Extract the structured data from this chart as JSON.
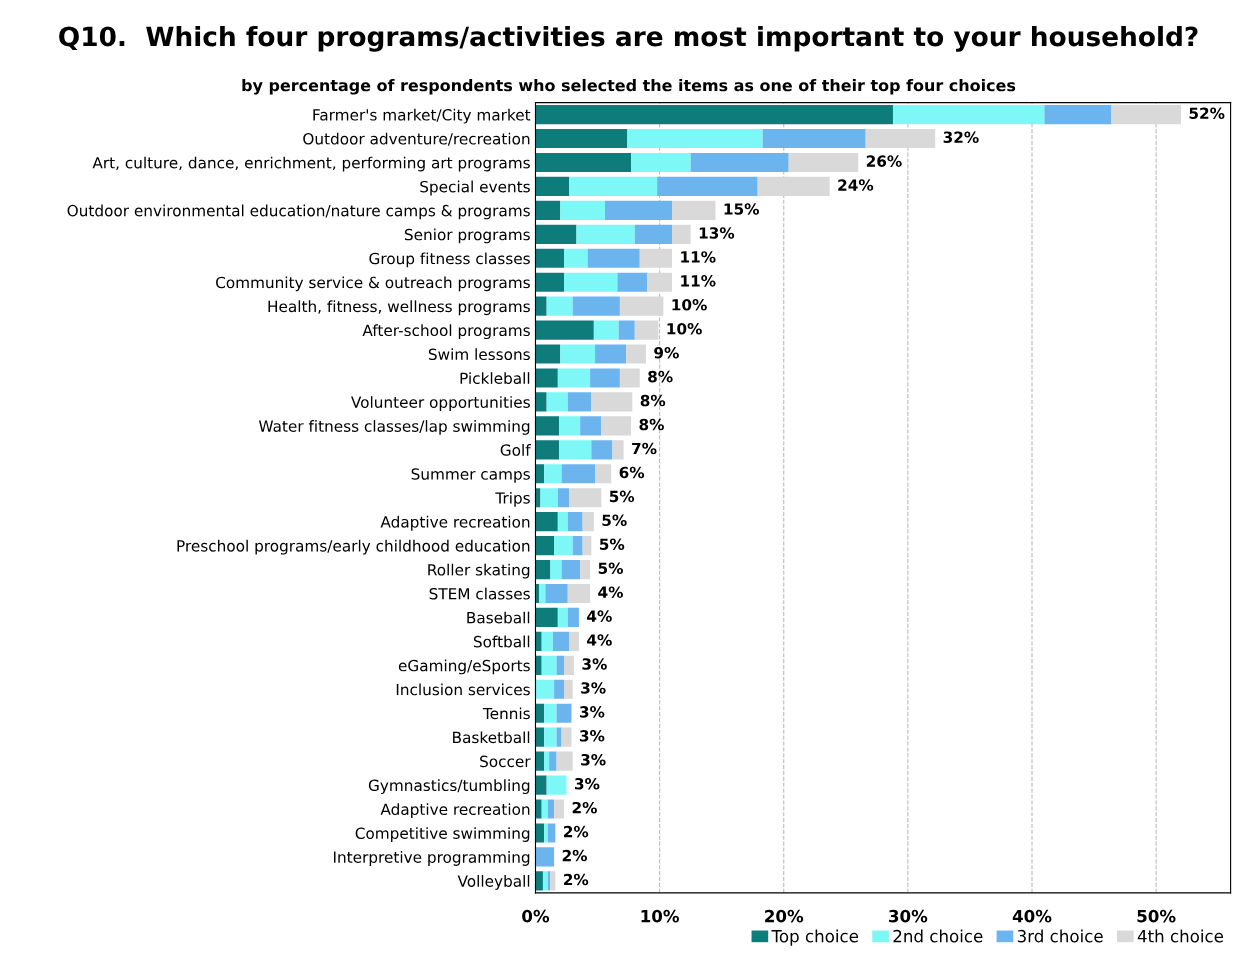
{
  "chart_data": {
    "type": "bar",
    "orientation": "horizontal",
    "stacked": true,
    "title": "Q10.  Which four programs/activities are most important to your household?",
    "subtitle": "by percentage of respondents who selected the items as one of their top four choices",
    "categories": [
      "Farmer's market/City market",
      "Outdoor adventure/recreation",
      "Art, culture, dance, enrichment, performing art programs",
      "Special events",
      "Outdoor environmental education/nature camps & programs",
      "Senior programs",
      "Group fitness classes",
      "Community service & outreach programs",
      "Health, fitness, wellness programs",
      "After-school programs",
      "Swim lessons",
      "Pickleball",
      "Volunteer opportunities",
      "Water fitness classes/lap swimming",
      "Golf",
      "Summer camps",
      "Trips",
      "Adaptive recreation",
      "Preschool programs/early childhood education",
      "Roller skating",
      "STEM classes",
      "Baseball",
      "Softball",
      "eGaming/eSports",
      "Inclusion services",
      "Tennis",
      "Basketball",
      "Soccer",
      "Gymnastics/tumbling",
      "Adaptive recreation",
      "Competitive swimming",
      "Interpretive programming",
      "Volleyball"
    ],
    "series": [
      {
        "name": "Top choice",
        "color": "#0e7c7b",
        "values": [
          28.8,
          7.4,
          7.7,
          2.7,
          2.0,
          3.3,
          2.3,
          2.3,
          0.9,
          4.7,
          2.0,
          1.8,
          0.9,
          1.9,
          1.9,
          0.7,
          0.4,
          1.8,
          1.5,
          1.2,
          0.3,
          1.8,
          0.5,
          0.5,
          0,
          0.7,
          0.7,
          0.7,
          0.9,
          0.5,
          0.7,
          0,
          0.6
        ]
      },
      {
        "name": "2nd choice",
        "color": "#7ef7f7",
        "values": [
          12.2,
          10.9,
          4.8,
          7.1,
          3.6,
          4.7,
          1.9,
          4.3,
          2.1,
          2.0,
          2.8,
          2.6,
          1.7,
          1.7,
          2.6,
          1.4,
          1.4,
          0.8,
          1.5,
          0.9,
          0.5,
          0.8,
          0.9,
          1.2,
          1.5,
          1.0,
          1.0,
          0.4,
          1.6,
          0.5,
          0.3,
          0,
          0.4
        ]
      },
      {
        "name": "3rd choice",
        "color": "#6cb4ee",
        "values": [
          5.4,
          8.3,
          7.9,
          8.1,
          5.4,
          3.0,
          4.2,
          2.4,
          3.8,
          1.3,
          2.5,
          2.4,
          1.9,
          1.7,
          1.7,
          2.7,
          0.9,
          1.2,
          0.8,
          1.5,
          1.8,
          0.9,
          1.3,
          0.6,
          0.8,
          1.2,
          0.4,
          0.6,
          0,
          0.5,
          0.6,
          1.5,
          0.2
        ]
      },
      {
        "name": "4th choice",
        "color": "#d9d9d9",
        "values": [
          5.6,
          5.6,
          5.6,
          5.8,
          3.5,
          1.5,
          2.6,
          2.0,
          3.5,
          1.9,
          1.6,
          1.6,
          3.3,
          2.4,
          0.9,
          1.3,
          2.6,
          0.9,
          0.7,
          0.8,
          1.8,
          0,
          0.8,
          0.8,
          0.7,
          0,
          0.8,
          1.3,
          0,
          0.8,
          0,
          0,
          0.4
        ]
      }
    ],
    "totals": [
      "52%",
      "32%",
      "26%",
      "24%",
      "15%",
      "13%",
      "11%",
      "11%",
      "10%",
      "10%",
      "9%",
      "8%",
      "8%",
      "8%",
      "7%",
      "6%",
      "5%",
      "5%",
      "5%",
      "5%",
      "4%",
      "4%",
      "4%",
      "3%",
      "3%",
      "3%",
      "3%",
      "3%",
      "3%",
      "2%",
      "2%",
      "2%",
      "2%"
    ],
    "xlim": [
      0,
      56
    ],
    "xticks": [
      {
        "value": 0,
        "label": "0%"
      },
      {
        "value": 10,
        "label": "10%"
      },
      {
        "value": 20,
        "label": "20%"
      },
      {
        "value": 30,
        "label": "30%"
      },
      {
        "value": 40,
        "label": "40%"
      },
      {
        "value": 50,
        "label": "50%"
      }
    ],
    "grid": "x",
    "legend": "bottom right"
  }
}
